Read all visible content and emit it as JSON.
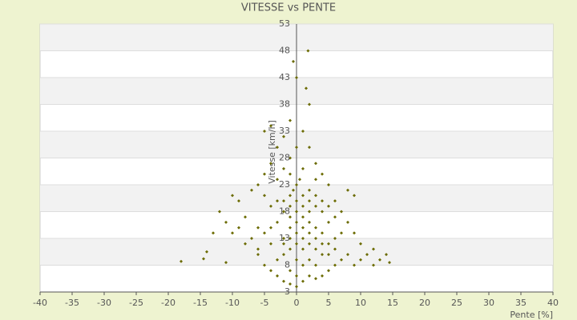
{
  "chart_data": {
    "type": "scatter",
    "title": "VITESSE vs PENTE",
    "x_label": "Pente [%]",
    "y_label": "Vitesse [km/h]",
    "series": [
      {
        "color": "#6b6b00",
        "x": [
          -18,
          -14.5,
          -14,
          -11,
          -13,
          -12,
          -10,
          -9,
          -8,
          -7,
          -6,
          -5,
          -4,
          -3,
          -2,
          -1,
          0,
          1,
          2,
          3,
          4,
          5,
          6,
          7,
          8,
          9,
          10,
          11,
          12,
          13,
          14,
          14.5,
          12,
          10,
          9,
          8,
          7,
          9,
          8,
          6,
          5,
          4,
          3,
          2,
          1,
          2,
          1.5,
          1.8,
          -0.5,
          0,
          -1,
          -2,
          -4,
          -5,
          -3,
          -4,
          -5,
          -6,
          -7,
          -3,
          -2,
          -1,
          0,
          1,
          0.5,
          -0.5,
          1,
          2,
          3,
          -1,
          -2,
          0,
          1,
          2,
          3,
          4,
          -3,
          -4,
          -5,
          -6,
          -2,
          0,
          1,
          2,
          3,
          4,
          5,
          6,
          -1,
          -2,
          -3,
          -4,
          0,
          1,
          2,
          3,
          5,
          6,
          -1,
          0,
          -6,
          -8,
          -9,
          -10,
          -11,
          4,
          5,
          6,
          7,
          0,
          1,
          -1,
          2,
          3,
          -2,
          0,
          1,
          -1,
          2,
          -1,
          0,
          4,
          5,
          -3,
          -4,
          -5,
          3,
          -1,
          2,
          1,
          -2,
          0,
          3,
          4,
          -1
        ],
        "values": [
          8.7,
          9.2,
          10.5,
          8.5,
          14,
          18,
          21,
          20,
          17,
          13,
          10,
          8,
          7,
          6,
          5,
          4.5,
          4,
          5,
          6,
          5.5,
          6,
          7,
          8,
          9,
          10,
          8,
          9,
          10,
          11,
          9,
          10,
          8.5,
          8,
          12,
          14,
          16,
          18,
          21,
          22,
          20,
          23,
          25,
          27,
          30,
          33,
          38,
          41,
          48,
          46,
          43,
          35,
          32,
          34,
          33,
          30,
          27,
          25,
          23,
          22,
          24,
          26,
          28,
          30,
          26,
          24,
          22,
          21,
          20,
          19,
          19,
          18,
          18,
          17,
          16,
          15,
          14,
          16,
          15,
          14,
          15,
          13,
          12,
          13,
          12,
          11,
          10,
          12,
          13,
          11,
          10,
          9,
          12,
          9,
          8,
          9,
          8,
          10,
          11,
          7,
          6,
          11,
          12,
          15,
          14,
          16,
          18,
          16,
          17,
          14,
          20,
          19,
          21,
          22,
          21,
          20,
          16,
          15,
          15,
          14,
          17,
          23,
          20,
          19,
          20,
          19,
          21,
          24,
          25,
          18,
          11,
          12,
          14,
          13,
          12,
          13
        ]
      }
    ],
    "xlim": [
      -40,
      40
    ],
    "xticks": [
      -40,
      -35,
      -30,
      -25,
      -20,
      -15,
      -10,
      -5,
      0,
      5,
      10,
      15,
      20,
      25,
      30,
      35,
      40
    ],
    "ylim": [
      3,
      53
    ],
    "yticks": [
      3,
      8,
      13,
      18,
      23,
      28,
      33,
      38,
      43,
      48,
      53
    ],
    "grid": true
  }
}
